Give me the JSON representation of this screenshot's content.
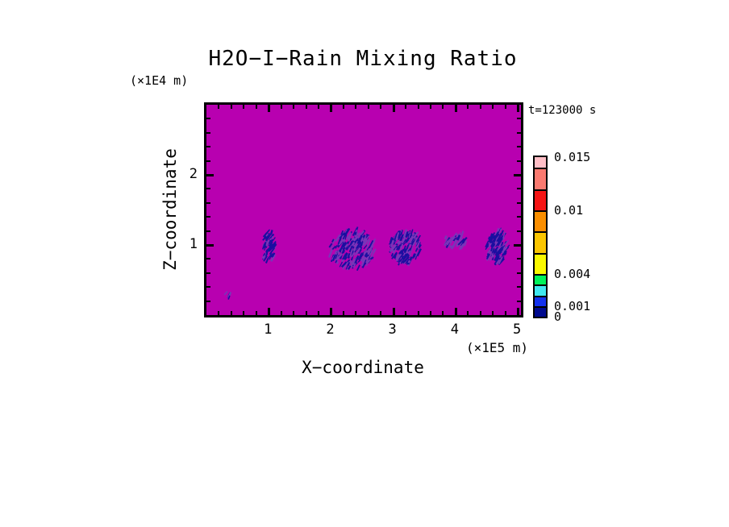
{
  "page": {
    "background_color": "#ffffff",
    "frame_color": "#000000"
  },
  "header": {
    "title": "H2O−I−Rain Mixing Ratio",
    "time_label": "t=123000 s"
  },
  "chart_data": {
    "type": "heatmap",
    "title": "H2O−I−Rain Mixing Ratio",
    "time_label": "t=123000 s",
    "xlabel": "X−coordinate",
    "x_unit_label": "(×1E5 m)",
    "ylabel": "Z−coordinate",
    "y_unit_label": "(×1E4 m)",
    "xlim": [
      0,
      5.05
    ],
    "zlim": [
      0,
      3.0
    ],
    "x_major_ticks": [
      1,
      2,
      3,
      4,
      5
    ],
    "x_tick_labels": [
      "1",
      "2",
      "3",
      "4",
      "5"
    ],
    "x_minor_step": 0.2,
    "z_major_ticks": [
      1,
      2
    ],
    "z_tick_labels": [
      "1",
      "2"
    ],
    "z_minor_step": 0.2,
    "grid": false,
    "background_field_value": 0,
    "background_color": "#B800B0",
    "colorbar": {
      "position": "right",
      "levels": [
        0,
        0.001,
        0.002,
        0.003,
        0.004,
        0.006,
        0.008,
        0.01,
        0.012,
        0.014,
        0.015
      ],
      "colors_bottom_to_top": [
        "#000A8E",
        "#1432EE",
        "#40E8F0",
        "#00F25A",
        "#FAF800",
        "#FBC500",
        "#FA8E00",
        "#F51515",
        "#FA7A70",
        "#FFBEC6"
      ],
      "labels": [
        {
          "value": 0.015,
          "text": "0.015"
        },
        {
          "value": 0.01,
          "text": "0.01"
        },
        {
          "value": 0.004,
          "text": "0.004"
        },
        {
          "value": 0.001,
          "text": "0.001"
        },
        {
          "value": 0,
          "text": "0"
        }
      ]
    },
    "rain_cells_note": "localized rain regions near z≈1 (×1E4 m); values fall in lowest color bins (≈0–0.001)",
    "rain_cells": [
      {
        "x": 1.005,
        "z": 0.99,
        "x_radius": 0.103,
        "z_radius": 0.228,
        "strokes": 60,
        "dark_fraction": 0.75,
        "seed": 11
      },
      {
        "x": 2.345,
        "z": 0.935,
        "x_radius": 0.36,
        "z_radius": 0.274,
        "strokes": 230,
        "dark_fraction": 0.5,
        "seed": 22
      },
      {
        "x": 3.196,
        "z": 0.969,
        "x_radius": 0.258,
        "z_radius": 0.228,
        "strokes": 150,
        "dark_fraction": 0.55,
        "seed": 33
      },
      {
        "x": 4.007,
        "z": 1.06,
        "x_radius": 0.193,
        "z_radius": 0.103,
        "strokes": 45,
        "dark_fraction": 0.25,
        "seed": 44
      },
      {
        "x": 4.665,
        "z": 0.969,
        "x_radius": 0.168,
        "z_radius": 0.24,
        "strokes": 115,
        "dark_fraction": 0.7,
        "seed": 55
      },
      {
        "x": 0.348,
        "z": 0.285,
        "x_radius": 0.045,
        "z_radius": 0.05,
        "strokes": 6,
        "dark_fraction": 0.2,
        "seed": 66
      }
    ],
    "cell_stroke_colors": {
      "dark": "#1A0FA0",
      "light": "#7A35B8"
    }
  }
}
